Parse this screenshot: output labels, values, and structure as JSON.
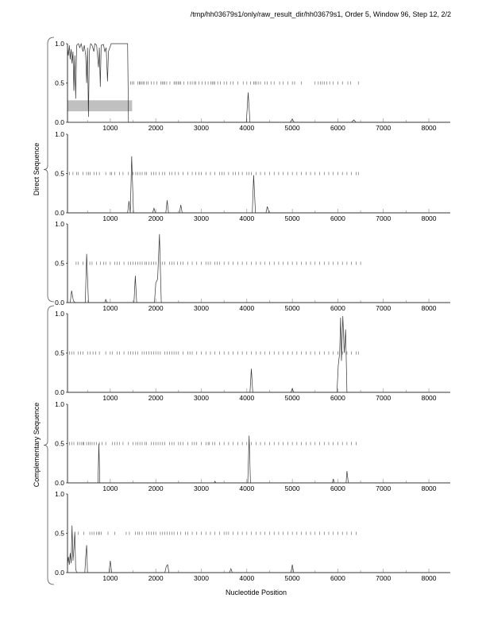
{
  "header": {
    "title": "/tmp/hh03679s1/only/raw_result_dir/hh03679s1, Order 5, Window 96, Step 12, 2/2"
  },
  "groups": [
    {
      "label": "Direct Sequence",
      "panels": [
        0,
        1,
        2
      ]
    },
    {
      "label": "Complementary Sequence",
      "panels": [
        3,
        4,
        5
      ]
    }
  ],
  "xlabel": "Nucleotide Position",
  "chart_data": [
    {
      "type": "line",
      "xlim": [
        60,
        8470
      ],
      "ylim": [
        0,
        1
      ],
      "yticks": [
        "0.0",
        "0.5",
        "1.0"
      ],
      "xticks": [
        "1000",
        "2000",
        "3000",
        "4000",
        "5000",
        "6000",
        "7000",
        "8000"
      ],
      "band": {
        "x": [
          60,
          1480
        ],
        "y": [
          0.14,
          0.28
        ]
      },
      "curve": [
        [
          60,
          0.95
        ],
        [
          80,
          0.85
        ],
        [
          100,
          0.98
        ],
        [
          120,
          0.8
        ],
        [
          140,
          0.93
        ],
        [
          160,
          0.75
        ],
        [
          180,
          0.9
        ],
        [
          200,
          0.4
        ],
        [
          220,
          0.85
        ],
        [
          240,
          0.3
        ],
        [
          260,
          0.98
        ],
        [
          300,
          1.0
        ],
        [
          330,
          0.95
        ],
        [
          360,
          1.0
        ],
        [
          400,
          0.9
        ],
        [
          430,
          0.98
        ],
        [
          460,
          0.85
        ],
        [
          480,
          0.5
        ],
        [
          500,
          0.95
        ],
        [
          520,
          0.07
        ],
        [
          540,
          0.9
        ],
        [
          570,
          1.0
        ],
        [
          600,
          0.98
        ],
        [
          640,
          0.9
        ],
        [
          660,
          1.0
        ],
        [
          700,
          0.98
        ],
        [
          740,
          0.7
        ],
        [
          760,
          0.95
        ],
        [
          780,
          0.45
        ],
        [
          800,
          0.98
        ],
        [
          850,
          0.99
        ],
        [
          880,
          0.9
        ],
        [
          910,
          0.95
        ],
        [
          940,
          0.52
        ],
        [
          960,
          0.9
        ],
        [
          990,
          0.95
        ],
        [
          1020,
          1.0
        ],
        [
          1200,
          1.0
        ],
        [
          1380,
          1.0
        ],
        [
          1400,
          0.0
        ],
        [
          3990,
          0.0
        ],
        [
          4030,
          0.38
        ],
        [
          4070,
          0.0
        ],
        [
          4950,
          0.0
        ],
        [
          5000,
          0.04
        ],
        [
          5040,
          0.0
        ],
        [
          6300,
          0.0
        ],
        [
          6350,
          0.03
        ],
        [
          6400,
          0.0
        ],
        [
          8470,
          0.0
        ]
      ],
      "ticks": [
        1450,
        1480,
        1520,
        1600,
        1640,
        1660,
        1690,
        1720,
        1750,
        1800,
        1830,
        1900,
        1960,
        2020,
        2110,
        2140,
        2170,
        2200,
        2240,
        2310,
        2400,
        2430,
        2460,
        2490,
        2520,
        2550,
        2620,
        2700,
        2760,
        2800,
        2850,
        2880,
        2950,
        3020,
        3090,
        3150,
        3210,
        3240,
        3270,
        3300,
        3360,
        3420,
        3500,
        3560,
        3640,
        3700,
        3800,
        3920,
        4000,
        4080,
        4150,
        4180,
        4210,
        4250,
        4300,
        4400,
        4450,
        4530,
        4600,
        4720,
        4800,
        4900,
        5000,
        5050,
        5200,
        5500,
        5570,
        5620,
        5660,
        5700,
        5760,
        5820,
        5900,
        6000,
        6100,
        6220,
        6280,
        6450
      ]
    },
    {
      "type": "line",
      "xlim": [
        60,
        8470
      ],
      "ylim": [
        0,
        1
      ],
      "yticks": [
        "0.0",
        "0.5",
        "1.0"
      ],
      "xticks": [
        "1000",
        "2000",
        "3000",
        "4000",
        "5000",
        "6000",
        "7000",
        "8000"
      ],
      "curve": [
        [
          60,
          0
        ],
        [
          1380,
          0
        ],
        [
          1410,
          0.15
        ],
        [
          1440,
          0
        ],
        [
          1470,
          0.72
        ],
        [
          1510,
          0.0
        ],
        [
          1930,
          0
        ],
        [
          1960,
          0.06
        ],
        [
          1990,
          0
        ],
        [
          2220,
          0
        ],
        [
          2250,
          0.16
        ],
        [
          2280,
          0
        ],
        [
          2520,
          0
        ],
        [
          2550,
          0.1
        ],
        [
          2580,
          0
        ],
        [
          4120,
          0
        ],
        [
          4150,
          0.48
        ],
        [
          4190,
          0
        ],
        [
          4420,
          0
        ],
        [
          4450,
          0.08
        ],
        [
          4490,
          0
        ],
        [
          8470,
          0
        ]
      ],
      "ticks": [
        100,
        180,
        260,
        300,
        400,
        480,
        520,
        560,
        640,
        700,
        760,
        900,
        1000,
        1030,
        1100,
        1200,
        1280,
        1400,
        1500,
        1560,
        1600,
        1650,
        1700,
        1760,
        1800,
        1900,
        1950,
        2000,
        2080,
        2150,
        2200,
        2300,
        2350,
        2420,
        2500,
        2600,
        2700,
        2800,
        2880,
        2950,
        3000,
        3100,
        3200,
        3300,
        3400,
        3450,
        3500,
        3600,
        3700,
        3750,
        3820,
        3900,
        4000,
        4050,
        4100,
        4200,
        4300,
        4400,
        4500,
        4600,
        4700,
        4800,
        4900,
        5000,
        5100,
        5200,
        5300,
        5400,
        5500,
        5600,
        5700,
        5800,
        5900,
        6000,
        6100,
        6200,
        6300,
        6400,
        6450
      ]
    },
    {
      "type": "line",
      "xlim": [
        60,
        8470
      ],
      "ylim": [
        0,
        1
      ],
      "yticks": [
        "0.0",
        "0.5",
        "1.0"
      ],
      "xticks": [
        "1000",
        "2000",
        "3000",
        "4000",
        "5000",
        "6000",
        "7000",
        "8000"
      ],
      "curve": [
        [
          60,
          0
        ],
        [
          120,
          0
        ],
        [
          150,
          0.15
        ],
        [
          190,
          0.02
        ],
        [
          230,
          0
        ],
        [
          450,
          0
        ],
        [
          480,
          0.62
        ],
        [
          520,
          0
        ],
        [
          880,
          0
        ],
        [
          900,
          0.04
        ],
        [
          930,
          0
        ],
        [
          1520,
          0
        ],
        [
          1550,
          0.34
        ],
        [
          1580,
          0
        ],
        [
          1970,
          0
        ],
        [
          2000,
          0.25
        ],
        [
          2040,
          0.3
        ],
        [
          2080,
          0.87
        ],
        [
          2120,
          0
        ],
        [
          8470,
          0
        ]
      ],
      "ticks": [
        250,
        300,
        400,
        550,
        600,
        700,
        780,
        850,
        900,
        1000,
        1100,
        1150,
        1200,
        1300,
        1400,
        1450,
        1500,
        1550,
        1600,
        1650,
        1700,
        1760,
        1800,
        1850,
        1900,
        1950,
        2000,
        2100,
        2150,
        2200,
        2300,
        2350,
        2400,
        2480,
        2550,
        2600,
        2700,
        2800,
        2900,
        3000,
        3100,
        3150,
        3200,
        3300,
        3350,
        3400,
        3500,
        3600,
        3700,
        3800,
        3900,
        4000,
        4100,
        4200,
        4300,
        4400,
        4500,
        4600,
        4700,
        4800,
        4900,
        5000,
        5100,
        5200,
        5300,
        5400,
        5500,
        5600,
        5700,
        5800,
        5900,
        6000,
        6100,
        6200,
        6300,
        6400,
        6500
      ]
    },
    {
      "type": "line",
      "xlim": [
        60,
        8470
      ],
      "ylim": [
        0,
        1
      ],
      "yticks": [
        "0.0",
        "0.5",
        "1.0"
      ],
      "xticks": [
        "1000",
        "2000",
        "3000",
        "4000",
        "5000",
        "6000",
        "7000",
        "8000"
      ],
      "curve": [
        [
          60,
          0
        ],
        [
          4070,
          0
        ],
        [
          4100,
          0.3
        ],
        [
          4130,
          0
        ],
        [
          4970,
          0
        ],
        [
          5000,
          0.05
        ],
        [
          5030,
          0
        ],
        [
          5980,
          0
        ],
        [
          6010,
          0.35
        ],
        [
          6040,
          0.5
        ],
        [
          6060,
          0.95
        ],
        [
          6080,
          0.4
        ],
        [
          6110,
          0.97
        ],
        [
          6140,
          0.5
        ],
        [
          6170,
          0.8
        ],
        [
          6200,
          0.0
        ],
        [
          8470,
          0
        ]
      ],
      "ticks": [
        100,
        150,
        200,
        300,
        350,
        400,
        500,
        560,
        620,
        680,
        760,
        900,
        1000,
        1050,
        1150,
        1200,
        1300,
        1400,
        1450,
        1500,
        1550,
        1600,
        1700,
        1750,
        1800,
        1850,
        1900,
        1950,
        2000,
        2050,
        2100,
        2200,
        2250,
        2300,
        2350,
        2400,
        2450,
        2500,
        2600,
        2700,
        2750,
        2800,
        2900,
        3000,
        3100,
        3200,
        3300,
        3400,
        3500,
        3600,
        3700,
        3800,
        3900,
        4000,
        4100,
        4200,
        4300,
        4400,
        4500,
        4600,
        4700,
        4800,
        4900,
        5000,
        5100,
        5200,
        5300,
        5400,
        5500,
        5600,
        5700,
        5800,
        5900,
        6000,
        6100,
        6200,
        6300,
        6400,
        6450
      ]
    },
    {
      "type": "line",
      "xlim": [
        60,
        8470
      ],
      "ylim": [
        0,
        1
      ],
      "yticks": [
        "0.0",
        "0.5",
        "1.0"
      ],
      "xticks": [
        "1000",
        "2000",
        "3000",
        "4000",
        "5000",
        "6000",
        "7000",
        "8000"
      ],
      "curve": [
        [
          60,
          0
        ],
        [
          730,
          0
        ],
        [
          750,
          0.5
        ],
        [
          770,
          0
        ],
        [
          3280,
          0
        ],
        [
          3300,
          0.02
        ],
        [
          3320,
          0
        ],
        [
          4020,
          0
        ],
        [
          4050,
          0.6
        ],
        [
          4080,
          0
        ],
        [
          5880,
          0
        ],
        [
          5900,
          0.05
        ],
        [
          5920,
          0
        ],
        [
          6180,
          0
        ],
        [
          6200,
          0.15
        ],
        [
          6230,
          0
        ],
        [
          8470,
          0
        ]
      ],
      "ticks": [
        100,
        150,
        200,
        280,
        320,
        360,
        400,
        420,
        480,
        520,
        560,
        600,
        650,
        700,
        760,
        820,
        900,
        1050,
        1100,
        1150,
        1200,
        1280,
        1400,
        1500,
        1560,
        1600,
        1650,
        1700,
        1760,
        1800,
        1900,
        1950,
        2000,
        2050,
        2100,
        2150,
        2200,
        2300,
        2350,
        2400,
        2500,
        2550,
        2600,
        2700,
        2800,
        2850,
        2900,
        3000,
        3100,
        3150,
        3180,
        3250,
        3300,
        3400,
        3500,
        3600,
        3700,
        3800,
        3900,
        4000,
        4100,
        4200,
        4300,
        4400,
        4500,
        4600,
        4700,
        4800,
        4900,
        5000,
        5100,
        5200,
        5300,
        5400,
        5500,
        5600,
        5700,
        5800,
        5900,
        6000,
        6100,
        6200,
        6300,
        6400
      ]
    },
    {
      "type": "line",
      "xlim": [
        60,
        8470
      ],
      "ylim": [
        0,
        1
      ],
      "yticks": [
        "0.0",
        "0.5",
        "1.0"
      ],
      "xticks": [
        "1000",
        "2000",
        "3000",
        "4000",
        "5000",
        "6000",
        "7000",
        "8000"
      ],
      "curve": [
        [
          60,
          0.1
        ],
        [
          80,
          0.2
        ],
        [
          100,
          0.1
        ],
        [
          120,
          0.25
        ],
        [
          140,
          0.12
        ],
        [
          160,
          0.6
        ],
        [
          180,
          0.15
        ],
        [
          200,
          0.3
        ],
        [
          220,
          0.52
        ],
        [
          240,
          0.05
        ],
        [
          260,
          0
        ],
        [
          440,
          0
        ],
        [
          460,
          0.2
        ],
        [
          480,
          0.35
        ],
        [
          500,
          0
        ],
        [
          970,
          0
        ],
        [
          1000,
          0.15
        ],
        [
          1030,
          0
        ],
        [
          2200,
          0
        ],
        [
          2230,
          0.08
        ],
        [
          2260,
          0.1
        ],
        [
          2290,
          0
        ],
        [
          3620,
          0
        ],
        [
          3650,
          0.05
        ],
        [
          3680,
          0
        ],
        [
          4970,
          0
        ],
        [
          5000,
          0.1
        ],
        [
          5030,
          0
        ],
        [
          8470,
          0
        ]
      ],
      "ticks": [
        300,
        420,
        550,
        600,
        640,
        700,
        740,
        760,
        800,
        950,
        1100,
        1350,
        1420,
        1550,
        1600,
        1640,
        1700,
        1800,
        1850,
        1900,
        1950,
        2000,
        2100,
        2150,
        2200,
        2250,
        2300,
        2350,
        2400,
        2480,
        2550,
        2650,
        2700,
        2800,
        2900,
        3000,
        3100,
        3200,
        3300,
        3400,
        3500,
        3550,
        3600,
        3700,
        3800,
        3900,
        4000,
        4100,
        4200,
        4300,
        4400,
        4500,
        4600,
        4700,
        4800,
        4900,
        5000,
        5100,
        5200,
        5300,
        5400,
        5500,
        5600,
        5700,
        5800,
        5900,
        6000,
        6100,
        6200,
        6300,
        6400
      ]
    }
  ]
}
